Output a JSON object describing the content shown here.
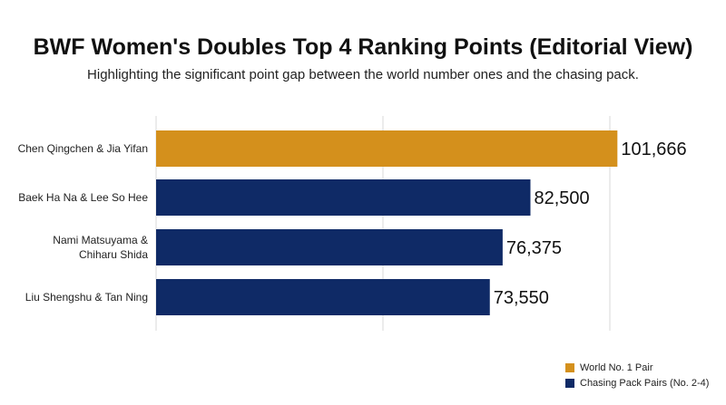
{
  "chart_data": {
    "type": "bar",
    "orientation": "horizontal",
    "title": "BWF Women's Doubles Top 4 Ranking Points (Editorial View)",
    "subtitle": "Highlighting the significant point gap between the world number ones and the chasing pack.",
    "categories": [
      [
        "Chen Qingchen & Jia Yifan"
      ],
      [
        "Baek Ha Na & Lee So Hee"
      ],
      [
        "Nami Matsuyama &",
        "Chiharu Shida"
      ],
      [
        "Liu Shengshu & Tan Ning"
      ]
    ],
    "values": [
      101666,
      82500,
      76375,
      73550
    ],
    "value_labels": [
      "101,666",
      "82,500",
      "76,375",
      "73,550"
    ],
    "groups": [
      0,
      1,
      1,
      1
    ],
    "xlim": [
      0,
      102000
    ],
    "grid": true,
    "legend": {
      "placement": "bottom-right",
      "entries": [
        {
          "label": "World No. 1 Pair",
          "color": "#D4901C"
        },
        {
          "label": "Chasing Pack Pairs (No. 2-4)",
          "color": "#0F2A66"
        }
      ]
    }
  }
}
